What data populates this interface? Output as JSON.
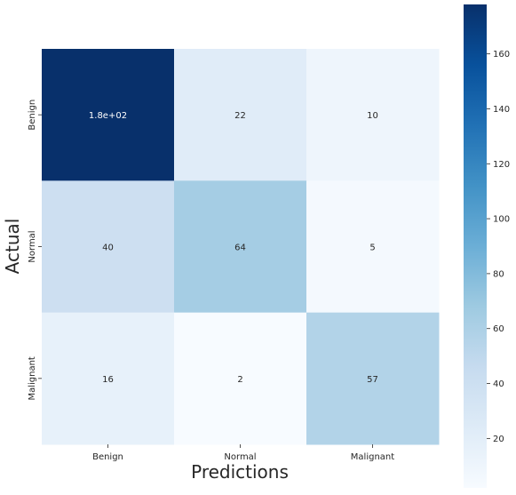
{
  "chart_data": {
    "type": "heatmap",
    "x_categories": [
      "Benign",
      "Normal",
      "Malignant"
    ],
    "y_categories": [
      "Benign",
      "Normal",
      "Malignant"
    ],
    "values": [
      [
        178,
        22,
        10
      ],
      [
        40,
        64,
        5
      ],
      [
        16,
        2,
        57
      ]
    ],
    "annotations": [
      [
        "1.8e+02",
        "22",
        "10"
      ],
      [
        "40",
        "64",
        "5"
      ],
      [
        "16",
        "2",
        "57"
      ]
    ],
    "xlabel": "Predictions",
    "ylabel": "Actual",
    "colormap": "Blues",
    "vmin": 2,
    "vmax": 178,
    "colorbar_ticks": [
      20,
      40,
      60,
      80,
      100,
      120,
      140,
      160
    ],
    "colorbar_tick_labels": [
      "20",
      "40",
      "60",
      "80",
      "100",
      "120",
      "140",
      "160"
    ],
    "colors": {
      "low": "#f7fbff",
      "high": "#08306b",
      "text_on_dark": "#ffffff",
      "text_on_light": "#262626"
    }
  }
}
